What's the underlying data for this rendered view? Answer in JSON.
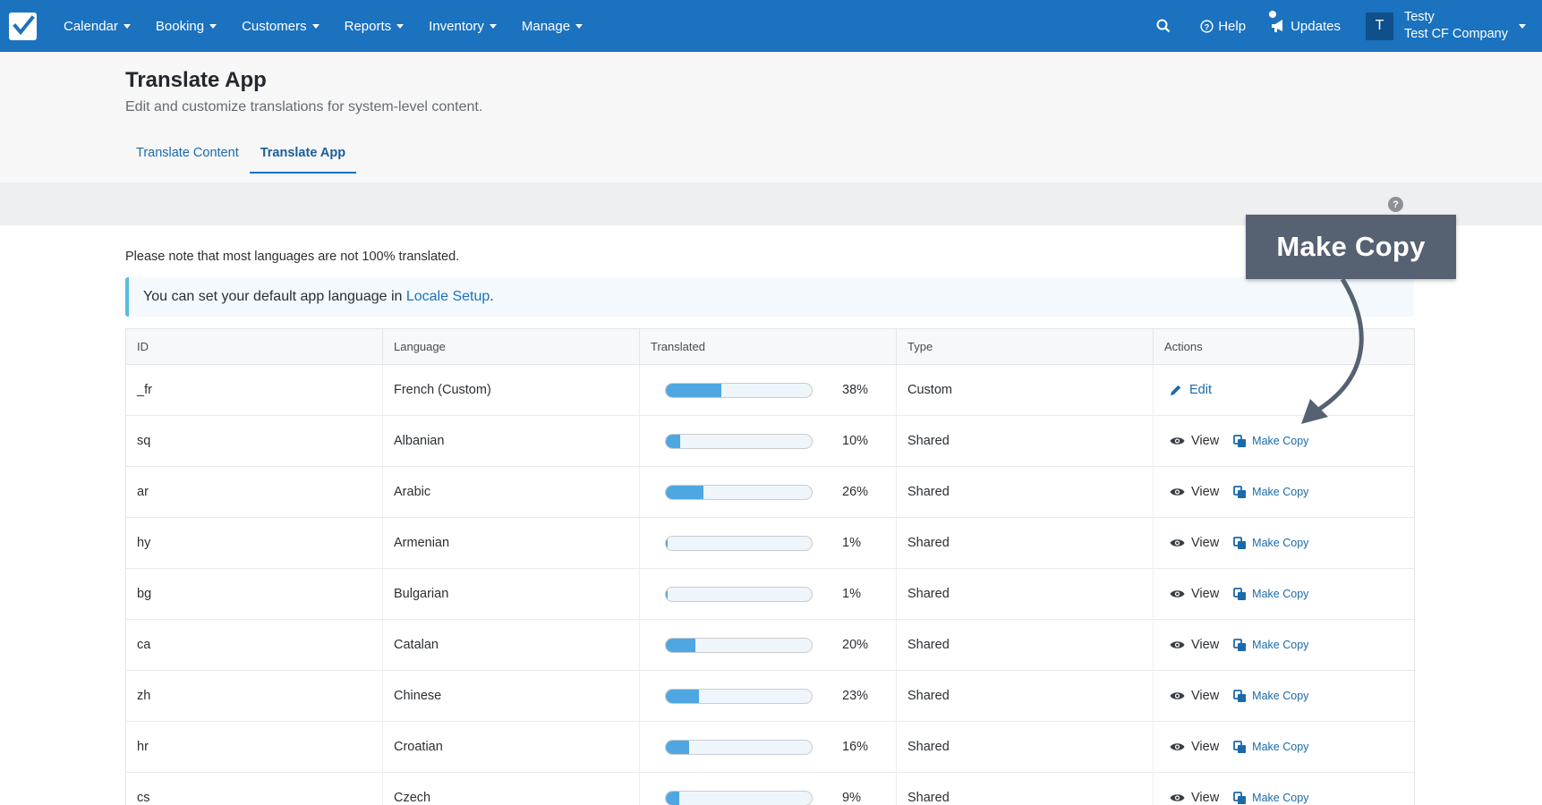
{
  "nav": {
    "items": [
      {
        "label": "Calendar"
      },
      {
        "label": "Booking"
      },
      {
        "label": "Customers"
      },
      {
        "label": "Reports"
      },
      {
        "label": "Inventory"
      },
      {
        "label": "Manage"
      }
    ],
    "help_label": "Help",
    "updates_label": "Updates",
    "user": {
      "initial": "T",
      "name": "Testy",
      "company": "Test CF Company"
    }
  },
  "page": {
    "title": "Translate App",
    "subtitle": "Edit and customize translations for system-level content.",
    "tabs": [
      {
        "label": "Translate Content",
        "active": false
      },
      {
        "label": "Translate App",
        "active": true
      }
    ]
  },
  "note": "Please note that most languages are not 100% translated.",
  "info": {
    "prefix": "You can set your default app language in ",
    "link": "Locale Setup",
    "suffix": "."
  },
  "table": {
    "headers": [
      "ID",
      "Language",
      "Translated",
      "Type",
      "Actions"
    ],
    "rows": [
      {
        "id": "_fr",
        "language": "French (Custom)",
        "percent": 38,
        "percent_label": "38%",
        "type": "Custom",
        "actions": "edit"
      },
      {
        "id": "sq",
        "language": "Albanian",
        "percent": 10,
        "percent_label": "10%",
        "type": "Shared",
        "actions": "view"
      },
      {
        "id": "ar",
        "language": "Arabic",
        "percent": 26,
        "percent_label": "26%",
        "type": "Shared",
        "actions": "view"
      },
      {
        "id": "hy",
        "language": "Armenian",
        "percent": 1,
        "percent_label": "1%",
        "type": "Shared",
        "actions": "view"
      },
      {
        "id": "bg",
        "language": "Bulgarian",
        "percent": 1,
        "percent_label": "1%",
        "type": "Shared",
        "actions": "view"
      },
      {
        "id": "ca",
        "language": "Catalan",
        "percent": 20,
        "percent_label": "20%",
        "type": "Shared",
        "actions": "view"
      },
      {
        "id": "zh",
        "language": "Chinese",
        "percent": 23,
        "percent_label": "23%",
        "type": "Shared",
        "actions": "view"
      },
      {
        "id": "hr",
        "language": "Croatian",
        "percent": 16,
        "percent_label": "16%",
        "type": "Shared",
        "actions": "view"
      },
      {
        "id": "cs",
        "language": "Czech",
        "percent": 9,
        "percent_label": "9%",
        "type": "Shared",
        "actions": "view"
      }
    ],
    "labels": {
      "edit": "Edit",
      "view": "View",
      "make_copy": "Make Copy"
    }
  },
  "callout": {
    "label": "Make Copy"
  },
  "help_icon": "?",
  "colors": {
    "nav": "#1b72be",
    "accent": "#1b6aab",
    "progress": "#4fa7e2",
    "callout": "#566171"
  },
  "icons": [
    "check-logo-icon",
    "search-icon",
    "help-icon",
    "megaphone-icon",
    "pencil-icon",
    "eye-icon",
    "copy-icon",
    "caret-down-icon",
    "arrow-icon"
  ]
}
